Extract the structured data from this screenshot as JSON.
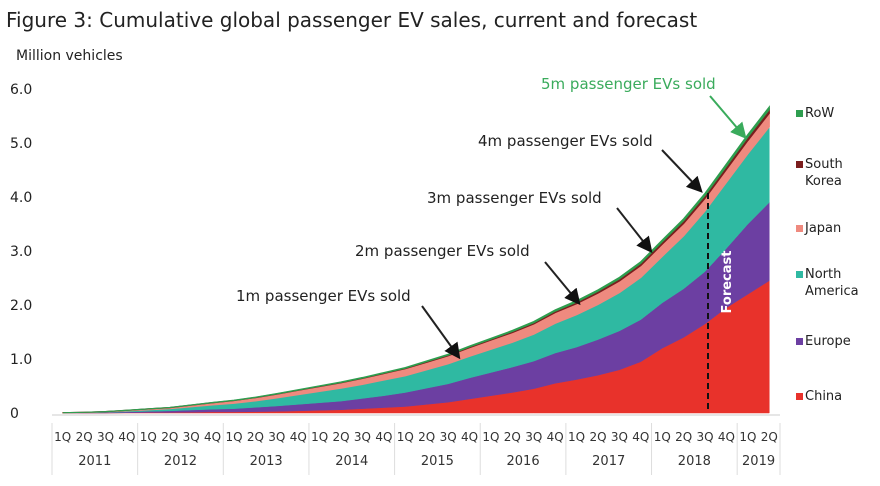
{
  "chart_data": {
    "type": "area",
    "stacked": true,
    "title": "Figure 3: Cumulative global passenger EV sales, current and forecast",
    "ylabel": "Million vehicles",
    "ylim": [
      0,
      6
    ],
    "yticks": [
      "0",
      "1.0",
      "2.0",
      "3.0",
      "4.0",
      "5.0",
      "6.0"
    ],
    "grid": false,
    "legend_position": "right",
    "quarter_labels": [
      "1Q",
      "2Q",
      "3Q",
      "4Q"
    ],
    "years": [
      {
        "label": "2011",
        "quarters": 4
      },
      {
        "label": "2012",
        "quarters": 4
      },
      {
        "label": "2013",
        "quarters": 4
      },
      {
        "label": "2014",
        "quarters": 4
      },
      {
        "label": "2015",
        "quarters": 4
      },
      {
        "label": "2016",
        "quarters": 4
      },
      {
        "label": "2017",
        "quarters": 4
      },
      {
        "label": "2018",
        "quarters": 4
      },
      {
        "label": "2019",
        "quarters": 2
      }
    ],
    "series": [
      {
        "name": "China",
        "color": "#e8322b",
        "values": [
          0,
          0,
          0,
          0.005,
          0.01,
          0.01,
          0.015,
          0.02,
          0.02,
          0.025,
          0.03,
          0.04,
          0.05,
          0.06,
          0.08,
          0.1,
          0.12,
          0.16,
          0.2,
          0.26,
          0.32,
          0.38,
          0.45,
          0.55,
          0.62,
          0.7,
          0.8,
          0.95,
          1.2,
          1.4,
          1.65,
          1.95,
          2.2,
          2.45
        ]
      },
      {
        "name": "Europe",
        "color": "#6c3fa2",
        "values": [
          0.002,
          0.005,
          0.01,
          0.015,
          0.02,
          0.03,
          0.04,
          0.05,
          0.06,
          0.08,
          0.1,
          0.12,
          0.14,
          0.16,
          0.19,
          0.22,
          0.26,
          0.3,
          0.34,
          0.39,
          0.43,
          0.47,
          0.51,
          0.56,
          0.6,
          0.66,
          0.72,
          0.78,
          0.84,
          0.9,
          0.97,
          1.1,
          1.3,
          1.45
        ]
      },
      {
        "name": "North America",
        "color": "#2fb9a2",
        "values": [
          0.003,
          0.005,
          0.01,
          0.02,
          0.03,
          0.04,
          0.06,
          0.08,
          0.1,
          0.12,
          0.15,
          0.18,
          0.21,
          0.24,
          0.26,
          0.29,
          0.31,
          0.34,
          0.37,
          0.4,
          0.43,
          0.46,
          0.5,
          0.55,
          0.6,
          0.65,
          0.71,
          0.78,
          0.86,
          0.98,
          1.12,
          1.22,
          1.3,
          1.4
        ]
      },
      {
        "name": "Japan",
        "color": "#ef8a7f",
        "values": [
          0.001,
          0.003,
          0.006,
          0.01,
          0.015,
          0.02,
          0.03,
          0.04,
          0.05,
          0.06,
          0.07,
          0.08,
          0.09,
          0.1,
          0.11,
          0.12,
          0.13,
          0.14,
          0.15,
          0.16,
          0.17,
          0.18,
          0.19,
          0.2,
          0.205,
          0.21,
          0.215,
          0.22,
          0.225,
          0.23,
          0.235,
          0.24,
          0.245,
          0.25
        ]
      },
      {
        "name": "South Korea",
        "color": "#7b1e1e",
        "values": [
          0,
          0,
          0,
          0,
          0.001,
          0.001,
          0.002,
          0.002,
          0.003,
          0.003,
          0.004,
          0.005,
          0.006,
          0.007,
          0.008,
          0.009,
          0.01,
          0.012,
          0.014,
          0.016,
          0.018,
          0.02,
          0.023,
          0.026,
          0.03,
          0.034,
          0.038,
          0.042,
          0.046,
          0.05,
          0.055,
          0.06,
          0.065,
          0.07
        ]
      },
      {
        "name": "RoW",
        "color": "#2e9e4f",
        "values": [
          0,
          0,
          0,
          0.001,
          0.001,
          0.002,
          0.002,
          0.003,
          0.003,
          0.004,
          0.005,
          0.006,
          0.007,
          0.008,
          0.009,
          0.01,
          0.011,
          0.012,
          0.013,
          0.014,
          0.016,
          0.018,
          0.02,
          0.022,
          0.024,
          0.026,
          0.028,
          0.03,
          0.033,
          0.036,
          0.04,
          0.043,
          0.047,
          0.05
        ]
      }
    ],
    "forecast": {
      "label": "Forecast",
      "start_after": "2018 3Q"
    },
    "annotations": [
      {
        "text": "1m passenger EVs sold",
        "color": "#222222"
      },
      {
        "text": "2m passenger EVs sold",
        "color": "#222222"
      },
      {
        "text": "3m passenger EVs sold",
        "color": "#222222"
      },
      {
        "text": "4m passenger EVs sold",
        "color": "#222222"
      },
      {
        "text": "5m passenger EVs sold",
        "color": "#3aab5c"
      }
    ]
  }
}
